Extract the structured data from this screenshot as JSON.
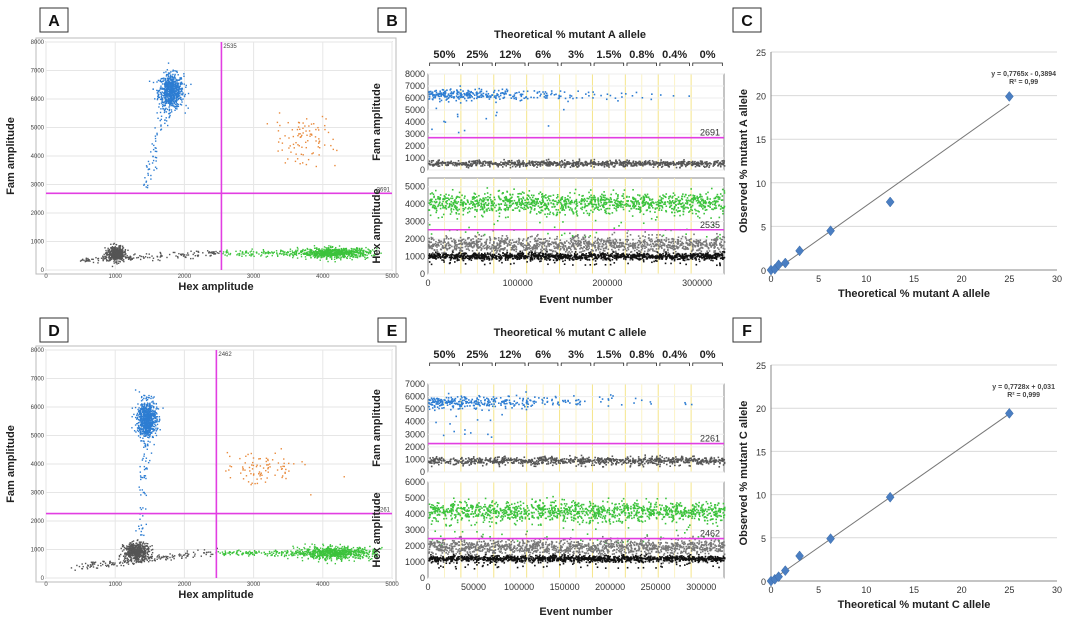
{
  "chart_data": [
    {
      "panel": "A",
      "type": "scatter",
      "xlabel": "Hex amplitude",
      "ylabel": "Fam amplitude",
      "xlim": [
        0,
        5000
      ],
      "ylim": [
        0,
        8000
      ],
      "xticks": [
        0,
        1000,
        2000,
        3000,
        4000,
        5000
      ],
      "yticks": [
        0,
        1000,
        2000,
        3000,
        4000,
        5000,
        6000,
        7000,
        8000
      ],
      "threshold_x": 2535,
      "threshold_y": 2691,
      "threshold_x_label": "2535",
      "threshold_y_label": "2691",
      "clusters": [
        {
          "color": "#2d7dd2",
          "cx": 1800,
          "cy": 6300,
          "sx": 90,
          "sy": 300,
          "n": 700
        },
        {
          "color": "#2d7dd2",
          "trail": [
            [
              1400,
              2700
            ],
            [
              1750,
              5900
            ]
          ],
          "n": 70
        },
        {
          "color": "#e8893a",
          "cx": 3700,
          "cy": 4600,
          "sx": 230,
          "sy": 420,
          "n": 90
        },
        {
          "color": "#555555",
          "cx": 1000,
          "cy": 600,
          "sx": 60,
          "sy": 120,
          "n": 450
        },
        {
          "color": "#555555",
          "trail": [
            [
              500,
              350
            ],
            [
              2500,
              620
            ]
          ],
          "n": 180
        },
        {
          "color": "#3cc33c",
          "cx": 4150,
          "cy": 620,
          "sx": 250,
          "sy": 90,
          "n": 600
        },
        {
          "color": "#3cc33c",
          "trail": [
            [
              2550,
              600
            ],
            [
              4700,
              640
            ]
          ],
          "n": 220
        }
      ]
    },
    {
      "panel": "D",
      "type": "scatter",
      "xlabel": "Hex amplitude",
      "ylabel": "Fam amplitude",
      "xlim": [
        0,
        5000
      ],
      "ylim": [
        0,
        8000
      ],
      "xticks": [
        0,
        1000,
        2000,
        3000,
        4000,
        5000
      ],
      "yticks": [
        0,
        1000,
        2000,
        3000,
        4000,
        5000,
        6000,
        7000,
        8000
      ],
      "threshold_x": 2462,
      "threshold_y": 2261,
      "threshold_x_label": "2462",
      "threshold_y_label": "2261",
      "clusters": [
        {
          "color": "#2d7dd2",
          "cx": 1450,
          "cy": 5600,
          "sx": 70,
          "sy": 320,
          "n": 700
        },
        {
          "color": "#2d7dd2",
          "trail": [
            [
              1350,
              1500
            ],
            [
              1440,
              5200
            ]
          ],
          "n": 70
        },
        {
          "color": "#e8893a",
          "cx": 3100,
          "cy": 3850,
          "sx": 280,
          "sy": 300,
          "n": 90
        },
        {
          "color": "#555555",
          "cx": 1300,
          "cy": 950,
          "sx": 90,
          "sy": 150,
          "n": 500
        },
        {
          "color": "#555555",
          "trail": [
            [
              400,
              400
            ],
            [
              2450,
              950
            ]
          ],
          "n": 180
        },
        {
          "color": "#3cc33c",
          "cx": 4150,
          "cy": 900,
          "sx": 280,
          "sy": 110,
          "n": 600
        },
        {
          "color": "#3cc33c",
          "trail": [
            [
              2500,
              900
            ],
            [
              4800,
              900
            ]
          ],
          "n": 220
        }
      ]
    },
    {
      "panel": "B",
      "type": "scatter",
      "title": "Theoretical  %  mutant A allele",
      "groups": [
        "50%",
        "25%",
        "12%",
        "6%",
        "3%",
        "1.5%",
        "0.8%",
        "0.4%",
        "0%"
      ],
      "xlabel": "Event number",
      "xlim": [
        0,
        330000
      ],
      "xticks": [
        0,
        100000,
        200000,
        300000
      ],
      "subplots": [
        {
          "ylabel": "Fam amplitude",
          "ylim": [
            0,
            8000
          ],
          "yticks": [
            0,
            1000,
            2000,
            3000,
            4000,
            5000,
            6000,
            7000,
            8000
          ],
          "threshold": 2691,
          "threshold_label": "2691",
          "bands": [
            {
              "color": "#2d7dd2",
              "y": 6300,
              "spread": 230,
              "density": [
                120,
                90,
                55,
                32,
                18,
                10,
                5,
                3,
                0
              ]
            },
            {
              "color": "#555555",
              "y": 600,
              "spread": 120,
              "density": [
                80,
                90,
                95,
                100,
                100,
                100,
                100,
                100,
                100
              ]
            }
          ]
        },
        {
          "ylabel": "Hex amplitude",
          "ylim": [
            0,
            5500
          ],
          "yticks": [
            0,
            1000,
            2000,
            3000,
            4000,
            5000
          ],
          "threshold": 2535,
          "threshold_label": "2535",
          "bands": [
            {
              "color": "#3cc33c",
              "y": 4100,
              "spread": 300,
              "density": [
                140,
                140,
                140,
                140,
                140,
                140,
                140,
                140,
                140
              ]
            },
            {
              "color": "#777777",
              "y": 1700,
              "spread": 250,
              "density": [
                140,
                140,
                140,
                140,
                140,
                140,
                140,
                140,
                140
              ]
            },
            {
              "color": "#111111",
              "y": 1050,
              "spread": 100,
              "density": [
                140,
                140,
                140,
                140,
                140,
                140,
                140,
                140,
                140
              ]
            }
          ]
        }
      ]
    },
    {
      "panel": "E",
      "type": "scatter",
      "title": "Theoretical  %  mutant C allele",
      "groups": [
        "50%",
        "25%",
        "12%",
        "6%",
        "3%",
        "1.5%",
        "0.8%",
        "0.4%",
        "0%"
      ],
      "xlabel": "Event number",
      "xlim": [
        0,
        325000
      ],
      "xticks": [
        0,
        50000,
        100000,
        150000,
        200000,
        250000,
        300000
      ],
      "subplots": [
        {
          "ylabel": "Fam amplitude",
          "ylim": [
            0,
            7000
          ],
          "yticks": [
            0,
            1000,
            2000,
            3000,
            4000,
            5000,
            6000,
            7000
          ],
          "threshold": 2261,
          "threshold_label": "2261",
          "bands": [
            {
              "color": "#2d7dd2",
              "y": 5600,
              "spread": 250,
              "density": [
                120,
                90,
                55,
                32,
                18,
                10,
                5,
                3,
                0
              ]
            },
            {
              "color": "#555555",
              "y": 950,
              "spread": 150,
              "density": [
                80,
                90,
                95,
                100,
                100,
                100,
                100,
                100,
                100
              ]
            }
          ]
        },
        {
          "ylabel": "Hex amplitude",
          "ylim": [
            0,
            6000
          ],
          "yticks": [
            0,
            1000,
            2000,
            3000,
            4000,
            5000,
            6000
          ],
          "threshold": 2462,
          "threshold_label": "2462",
          "bands": [
            {
              "color": "#3cc33c",
              "y": 4200,
              "spread": 320,
              "density": [
                140,
                140,
                140,
                140,
                140,
                140,
                140,
                140,
                140
              ]
            },
            {
              "color": "#777777",
              "y": 1950,
              "spread": 250,
              "density": [
                140,
                140,
                140,
                140,
                140,
                140,
                140,
                140,
                140
              ]
            },
            {
              "color": "#111111",
              "y": 1250,
              "spread": 100,
              "density": [
                140,
                140,
                140,
                140,
                140,
                140,
                140,
                140,
                140
              ]
            }
          ]
        }
      ]
    },
    {
      "panel": "C",
      "type": "scatter",
      "xlabel": "Theoretical  %  mutant A allele",
      "ylabel": "Observed  %  mutant A allele",
      "xlim": [
        0,
        30
      ],
      "ylim": [
        0,
        25
      ],
      "xticks": [
        0,
        5,
        10,
        15,
        20,
        25,
        30
      ],
      "yticks": [
        0,
        5,
        10,
        15,
        20,
        25
      ],
      "x": [
        0,
        0.4,
        0.8,
        1.5,
        3,
        6.25,
        12.5,
        25
      ],
      "y": [
        0,
        0.1,
        0.6,
        0.8,
        2.2,
        4.5,
        7.8,
        19.9
      ],
      "fit_slope": 0.7765,
      "fit_intercept": -0.3894,
      "equation": "y = 0,7765x - 0,3894",
      "r2": "R² = 0,99"
    },
    {
      "panel": "F",
      "type": "scatter",
      "xlabel": "Theoretical  %  mutant C allele",
      "ylabel": "Observed  %  mutant C allele",
      "xlim": [
        0,
        30
      ],
      "ylim": [
        0,
        25
      ],
      "xticks": [
        0,
        5,
        10,
        15,
        20,
        25,
        30
      ],
      "yticks": [
        0,
        5,
        10,
        15,
        20,
        25
      ],
      "x": [
        0,
        0.4,
        0.8,
        1.5,
        3,
        6.25,
        12.5,
        25
      ],
      "y": [
        0,
        0.2,
        0.5,
        1.2,
        2.9,
        4.9,
        9.7,
        19.4
      ],
      "fit_slope": 0.7728,
      "fit_intercept": 0.031,
      "equation": "y = 0,7728x + 0,031",
      "r2": "R² = 0,999"
    }
  ]
}
